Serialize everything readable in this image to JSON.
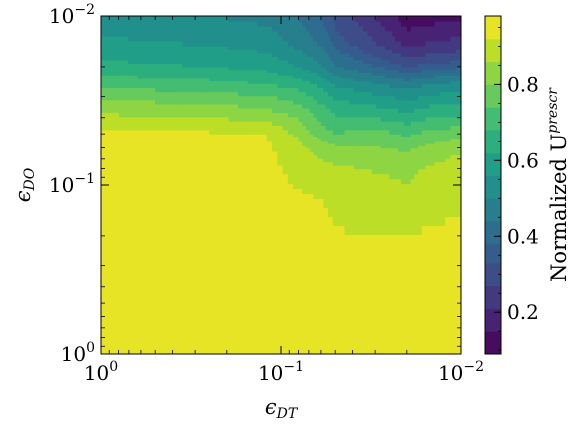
{
  "chart_data": {
    "type": "heatmap",
    "subtype": "filled-contour",
    "title": "",
    "x_axis": {
      "label": "ϵ",
      "label_sub": "DT",
      "scale": "log",
      "direction": "decreasing",
      "range": [
        1,
        0.01
      ],
      "ticks": [
        {
          "value": 1,
          "base": "10",
          "exp": "0"
        },
        {
          "value": 0.1,
          "base": "10",
          "exp": "−1"
        },
        {
          "value": 0.01,
          "base": "10",
          "exp": "−2"
        }
      ]
    },
    "y_axis": {
      "label": "ϵ",
      "label_sub": "DO",
      "scale": "log",
      "direction": "decreasing-upward",
      "range": [
        1,
        0.01
      ],
      "ticks": [
        {
          "value": 1,
          "base": "10",
          "exp": "0"
        },
        {
          "value": 0.1,
          "base": "10",
          "exp": "−1"
        },
        {
          "value": 0.01,
          "base": "10",
          "exp": "−2"
        }
      ]
    },
    "colorbar": {
      "label": "Normalized U",
      "label_sup": "prescr",
      "range": [
        0.09,
        0.98
      ],
      "ticks": [
        {
          "value": 0.2,
          "label": "0.2"
        },
        {
          "value": 0.4,
          "label": "0.4"
        },
        {
          "value": 0.6,
          "label": "0.6"
        },
        {
          "value": 0.8,
          "label": "0.8"
        }
      ],
      "colormap": "viridis"
    },
    "levels": [
      0.09,
      0.15,
      0.21,
      0.27,
      0.33,
      0.38,
      0.44,
      0.5,
      0.56,
      0.62,
      0.68,
      0.74,
      0.8,
      0.86,
      0.92,
      0.98
    ],
    "x_grid": [
      1,
      0.5,
      0.25,
      0.12,
      0.08,
      0.06,
      0.05,
      0.035,
      0.025,
      0.02,
      0.015,
      0.01
    ],
    "y_grid": [
      1,
      0.5,
      0.25,
      0.12,
      0.08,
      0.06,
      0.05,
      0.035,
      0.025,
      0.02,
      0.015,
      0.01
    ],
    "z": [
      [
        0.94,
        0.94,
        0.94,
        0.94,
        0.94,
        0.94,
        0.94,
        0.94,
        0.94,
        0.96,
        0.97,
        0.98
      ],
      [
        0.94,
        0.94,
        0.94,
        0.94,
        0.94,
        0.94,
        0.94,
        0.94,
        0.94,
        0.95,
        0.96,
        0.97
      ],
      [
        0.94,
        0.94,
        0.94,
        0.94,
        0.94,
        0.94,
        0.93,
        0.93,
        0.94,
        0.94,
        0.94,
        0.94
      ],
      [
        0.94,
        0.94,
        0.94,
        0.94,
        0.93,
        0.92,
        0.91,
        0.9,
        0.89,
        0.88,
        0.9,
        0.91
      ],
      [
        0.94,
        0.94,
        0.94,
        0.94,
        0.9,
        0.88,
        0.87,
        0.86,
        0.85,
        0.84,
        0.87,
        0.89
      ],
      [
        0.94,
        0.94,
        0.94,
        0.93,
        0.88,
        0.84,
        0.82,
        0.81,
        0.8,
        0.79,
        0.82,
        0.85
      ],
      [
        0.93,
        0.93,
        0.93,
        0.92,
        0.85,
        0.77,
        0.74,
        0.76,
        0.75,
        0.73,
        0.76,
        0.78
      ],
      [
        0.84,
        0.83,
        0.82,
        0.8,
        0.76,
        0.7,
        0.66,
        0.64,
        0.62,
        0.6,
        0.63,
        0.64
      ],
      [
        0.72,
        0.71,
        0.7,
        0.68,
        0.65,
        0.6,
        0.55,
        0.52,
        0.49,
        0.47,
        0.5,
        0.52
      ],
      [
        0.64,
        0.63,
        0.62,
        0.6,
        0.56,
        0.51,
        0.45,
        0.4,
        0.36,
        0.33,
        0.35,
        0.37
      ],
      [
        0.58,
        0.57,
        0.56,
        0.54,
        0.49,
        0.44,
        0.37,
        0.31,
        0.25,
        0.2,
        0.22,
        0.24
      ],
      [
        0.52,
        0.51,
        0.5,
        0.48,
        0.44,
        0.38,
        0.31,
        0.24,
        0.17,
        0.11,
        0.12,
        0.14
      ]
    ]
  }
}
